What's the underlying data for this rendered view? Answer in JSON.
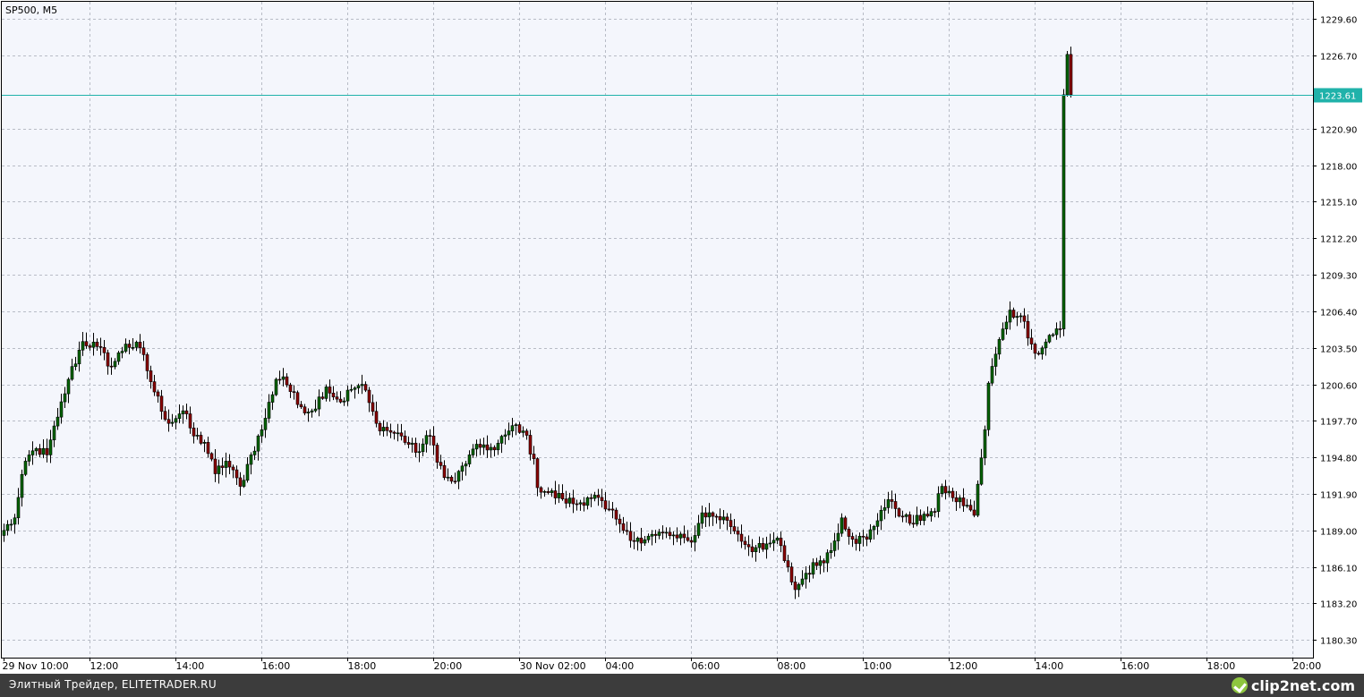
{
  "chart_data": {
    "type": "candlestick",
    "title": "SP500, M5",
    "ylim": [
      1178.9,
      1231.05
    ],
    "current_price": 1223.61,
    "current_price_label": "1223.61",
    "y_ticks": [
      "1229.60",
      "1226.70",
      "1220.90",
      "1218.00",
      "1215.10",
      "1212.20",
      "1209.30",
      "1206.40",
      "1203.50",
      "1200.60",
      "1197.70",
      "1194.80",
      "1191.90",
      "1189.00",
      "1186.10",
      "1183.20",
      "1180.30"
    ],
    "x_ticks": [
      "29 Nov 10:00",
      "12:00",
      "14:00",
      "16:00",
      "18:00",
      "20:00",
      "30 Nov 02:00",
      "04:00",
      "06:00",
      "08:00",
      "10:00",
      "12:00",
      "14:00",
      "16:00",
      "18:00",
      "20:00"
    ],
    "grid": true,
    "colors": {
      "bull": "#006400",
      "bear": "#8b0000",
      "price_line": "#20b2aa",
      "background": "#f4f6fc"
    },
    "anchors": [
      [
        0,
        1189.0
      ],
      [
        3,
        1190.0
      ],
      [
        6,
        1194.5
      ],
      [
        9,
        1195.5
      ],
      [
        12,
        1195.0
      ],
      [
        15,
        1198.0
      ],
      [
        18,
        1201.0
      ],
      [
        22,
        1204.0
      ],
      [
        26,
        1203.6
      ],
      [
        30,
        1202.0
      ],
      [
        34,
        1203.8
      ],
      [
        38,
        1203.5
      ],
      [
        42,
        1200.0
      ],
      [
        46,
        1197.5
      ],
      [
        50,
        1198.5
      ],
      [
        53,
        1196.5
      ],
      [
        56,
        1196.0
      ],
      [
        59,
        1193.5
      ],
      [
        62,
        1194.5
      ],
      [
        66,
        1192.5
      ],
      [
        69,
        1195.0
      ],
      [
        72,
        1197.0
      ],
      [
        76,
        1201.0
      ],
      [
        78,
        1201.2
      ],
      [
        82,
        1199.0
      ],
      [
        86,
        1198.5
      ],
      [
        90,
        1200.4
      ],
      [
        94,
        1199.2
      ],
      [
        97,
        1200.2
      ],
      [
        100,
        1200.6
      ],
      [
        104,
        1197.5
      ],
      [
        108,
        1196.8
      ],
      [
        111,
        1196.5
      ],
      [
        115,
        1195.2
      ],
      [
        119,
        1196.5
      ],
      [
        123,
        1193.2
      ],
      [
        126,
        1192.9
      ],
      [
        130,
        1195.0
      ],
      [
        134,
        1195.8
      ],
      [
        137,
        1195.4
      ],
      [
        141,
        1196.9
      ],
      [
        143,
        1197.4
      ],
      [
        145,
        1196.9
      ],
      [
        148,
        1194.7
      ],
      [
        149,
        1192.4
      ],
      [
        152,
        1192.0
      ],
      [
        156,
        1191.5
      ],
      [
        160,
        1191.1
      ],
      [
        163,
        1191.6
      ],
      [
        165,
        1191.8
      ],
      [
        168,
        1190.7
      ],
      [
        171,
        1189.9
      ],
      [
        173,
        1189.0
      ],
      [
        175,
        1188.2
      ],
      [
        177,
        1188.4
      ],
      [
        182,
        1188.6
      ],
      [
        184,
        1188.8
      ],
      [
        188,
        1188.4
      ],
      [
        191,
        1188.2
      ],
      [
        193,
        1188.6
      ],
      [
        195,
        1190.4
      ],
      [
        199,
        1190.1
      ],
      [
        202,
        1189.8
      ],
      [
        205,
        1188.7
      ],
      [
        208,
        1187.7
      ],
      [
        212,
        1187.5
      ],
      [
        214,
        1188.0
      ],
      [
        216,
        1188.4
      ],
      [
        218,
        1186.6
      ],
      [
        221,
        1184.3
      ],
      [
        224,
        1185.6
      ],
      [
        228,
        1186.6
      ],
      [
        231,
        1187.4
      ],
      [
        234,
        1190.0
      ],
      [
        237,
        1188.3
      ],
      [
        241,
        1188.3
      ],
      [
        245,
        1190.6
      ],
      [
        248,
        1191.3
      ],
      [
        251,
        1190.1
      ],
      [
        254,
        1189.5
      ],
      [
        257,
        1190.3
      ],
      [
        260,
        1190.5
      ],
      [
        262,
        1192.5
      ],
      [
        265,
        1191.6
      ],
      [
        269,
        1191.0
      ],
      [
        271,
        1190.2
      ],
      [
        274,
        1197.0
      ],
      [
        275,
        1200.7
      ],
      [
        277,
        1203.0
      ],
      [
        279,
        1205.0
      ],
      [
        281,
        1206.5
      ],
      [
        283,
        1206.0
      ],
      [
        285,
        1205.6
      ],
      [
        287,
        1203.8
      ],
      [
        289,
        1203.0
      ],
      [
        292,
        1204.5
      ],
      [
        295,
        1205.0
      ],
      [
        296,
        1223.6
      ],
      [
        297,
        1226.8
      ],
      [
        298,
        1223.6
      ]
    ]
  },
  "footer": {
    "left_text": "Элитный Трейдер, ELITETRADER.RU",
    "logo_text": "clip2net.com"
  }
}
